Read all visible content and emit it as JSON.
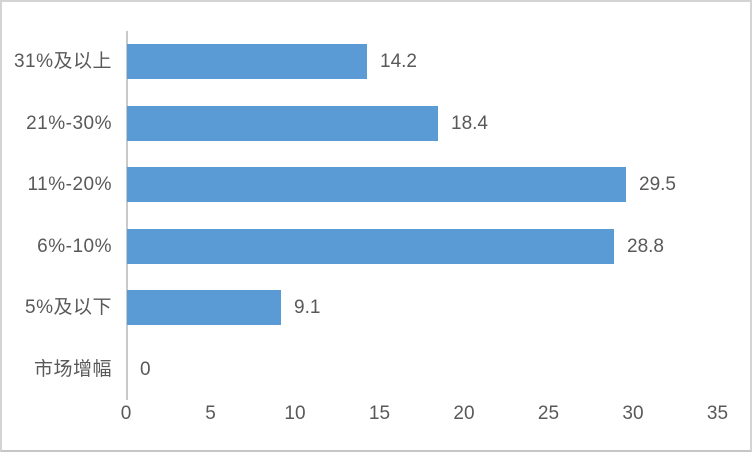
{
  "chart_data": {
    "type": "bar",
    "orientation": "horizontal",
    "title": "",
    "xlabel": "",
    "ylabel": "",
    "categories": [
      "31%及以上",
      "21%-30%",
      "11%-20%",
      "6%-10%",
      "5%及以下",
      "市场增幅"
    ],
    "values": [
      14.2,
      18.4,
      29.5,
      28.8,
      9.1,
      0
    ],
    "value_labels": [
      "14.2",
      "18.4",
      "29.5",
      "28.8",
      "9.1",
      "0"
    ],
    "xlim": [
      0,
      35
    ],
    "xticks": [
      "0",
      "5",
      "10",
      "15",
      "20",
      "25",
      "30",
      "35"
    ],
    "grid": false,
    "legend": "none",
    "colors": {
      "bar": "#5B9BD5",
      "text": "#595959",
      "axis_line": "#C9C9C9",
      "background": "#FFFFFF"
    }
  }
}
